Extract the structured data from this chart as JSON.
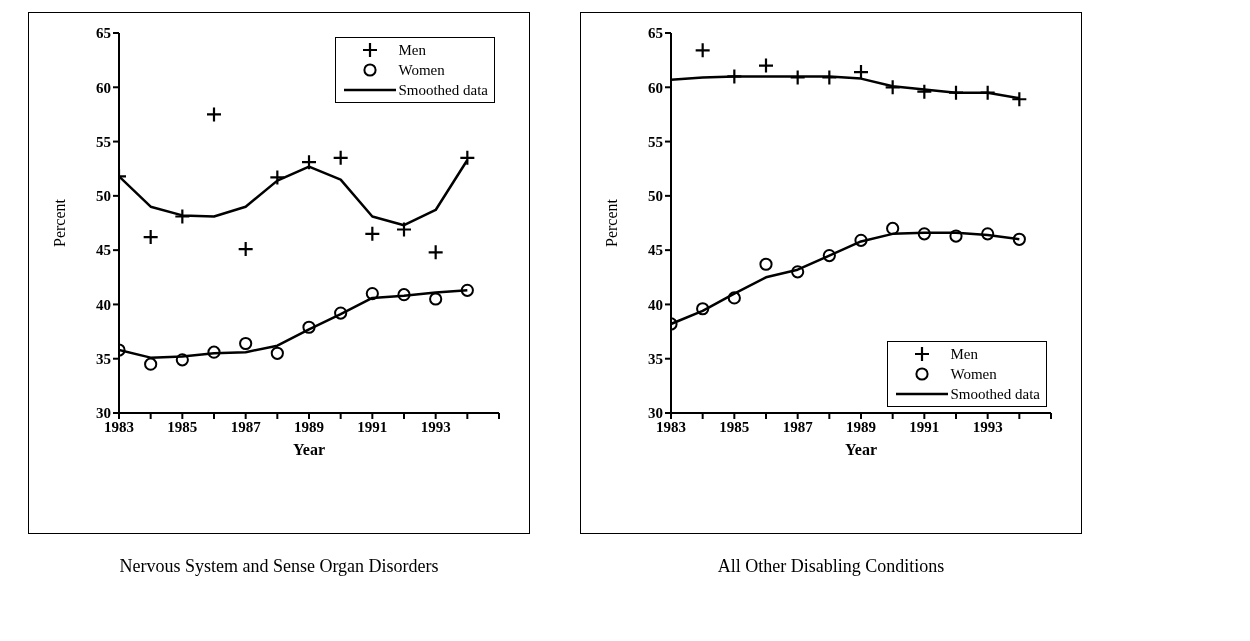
{
  "chart_data": [
    {
      "type": "scatter",
      "title": "Nervous System and Sense Organ Disorders",
      "xlabel": "Year",
      "ylabel": "Percent",
      "xlim": [
        1983,
        1995
      ],
      "ylim": [
        30,
        65
      ],
      "yticks": [
        30,
        35,
        40,
        45,
        50,
        55,
        60,
        65
      ],
      "xticks": [
        1983,
        {
          "value": 1984,
          "label": null
        },
        1985,
        {
          "value": 1986,
          "label": null
        },
        1987,
        {
          "value": 1988,
          "label": null
        },
        1989,
        {
          "value": 1990,
          "label": null
        },
        1991,
        {
          "value": 1992,
          "label": null
        },
        1993,
        {
          "value": 1994,
          "label": null
        },
        {
          "value": 1995,
          "label": null
        }
      ],
      "x": [
        1983,
        1984,
        1985,
        1986,
        1987,
        1988,
        1989,
        1990,
        1991,
        1992,
        1993,
        1994
      ],
      "legend": "top right",
      "grid": false,
      "series": [
        {
          "name": "Men",
          "marker": "cross",
          "color": "#000000",
          "values": [
            51.8,
            46.2,
            48.1,
            57.5,
            45.1,
            51.7,
            53.1,
            53.5,
            46.5,
            46.9,
            44.8,
            53.5
          ]
        },
        {
          "name": "Women",
          "marker": "circle",
          "color": "#000000",
          "values": [
            35.8,
            34.5,
            34.9,
            35.6,
            36.4,
            35.5,
            37.9,
            39.2,
            41.0,
            40.9,
            40.5,
            41.3
          ]
        },
        {
          "name": "Smoothed data",
          "type": "line",
          "marker": "none",
          "line_style": "solid",
          "color": "#000000",
          "values": [
            51.8,
            49.0,
            48.2,
            48.1,
            49.0,
            51.4,
            52.7,
            51.5,
            48.1,
            47.3,
            48.7,
            53.3
          ]
        },
        {
          "type": "line",
          "marker": "none",
          "line_style": "solid",
          "color": "#000000",
          "values": [
            35.8,
            35.1,
            35.2,
            35.5,
            35.6,
            36.2,
            37.7,
            39.1,
            40.6,
            40.8,
            41.1,
            41.3
          ]
        }
      ]
    },
    {
      "type": "scatter",
      "title": "All Other Disabling Conditions",
      "xlabel": "Year",
      "ylabel": "Percent",
      "xlim": [
        1983,
        1995
      ],
      "ylim": [
        30,
        65
      ],
      "yticks": [
        30,
        35,
        40,
        45,
        50,
        55,
        60,
        65
      ],
      "xticks": [
        1983,
        {
          "value": 1984,
          "label": null
        },
        1985,
        {
          "value": 1986,
          "label": null
        },
        1987,
        {
          "value": 1988,
          "label": null
        },
        1989,
        {
          "value": 1990,
          "label": null
        },
        1991,
        {
          "value": 1992,
          "label": null
        },
        1993,
        {
          "value": 1994,
          "label": null
        },
        {
          "value": 1995,
          "label": null
        }
      ],
      "x": [
        1983,
        1984,
        1985,
        1986,
        1987,
        1988,
        1989,
        1990,
        1991,
        1992,
        1993,
        1994
      ],
      "legend": "bottom right",
      "grid": false,
      "series": [
        {
          "name": "Men",
          "marker": "cross",
          "color": "#000000",
          "values": [
            null,
            63.4,
            61.0,
            62.0,
            60.9,
            60.9,
            61.4,
            60.0,
            59.6,
            59.5,
            59.5,
            58.9
          ]
        },
        {
          "name": "Women",
          "marker": "circle",
          "color": "#000000",
          "values": [
            38.2,
            39.6,
            40.6,
            43.7,
            43.0,
            44.5,
            45.9,
            47.0,
            46.5,
            46.3,
            46.5,
            46.0
          ]
        },
        {
          "name": "Smoothed data",
          "type": "line",
          "marker": "none",
          "line_style": "solid",
          "color": "#000000",
          "values": [
            60.7,
            60.9,
            61.0,
            61.0,
            61.0,
            61.0,
            60.8,
            60.1,
            59.8,
            59.5,
            59.5,
            59.0
          ]
        },
        {
          "type": "line",
          "marker": "none",
          "line_style": "solid",
          "color": "#000000",
          "values": [
            38.2,
            39.4,
            41.0,
            42.5,
            43.2,
            44.5,
            45.8,
            46.5,
            46.6,
            46.6,
            46.4,
            46.0
          ]
        }
      ]
    }
  ]
}
